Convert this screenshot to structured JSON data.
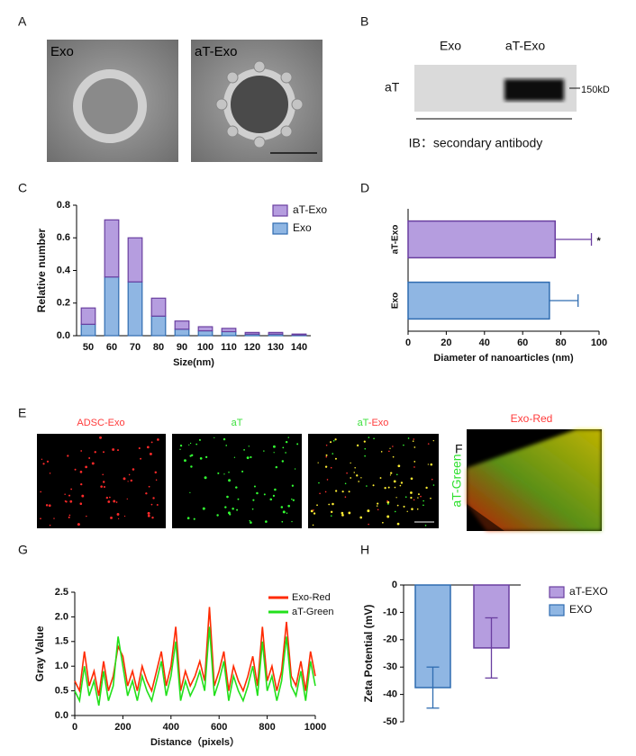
{
  "panel_labels": [
    "A",
    "B",
    "C",
    "D",
    "E",
    "F",
    "G",
    "H"
  ],
  "panel_a": {
    "images": [
      "Exo",
      "aT-Exo"
    ]
  },
  "panel_b": {
    "lanes": [
      "Exo",
      "aT-Exo"
    ],
    "row_label": "aT",
    "marker": "150kD",
    "caption": "IB：secondary antibody"
  },
  "panel_e": {
    "titles": [
      "ADSC-Exo",
      "aT",
      [
        "aT",
        "-Exo"
      ]
    ]
  },
  "panel_f": {
    "x_label": "Exo-Red",
    "y_label": "aT-Green"
  },
  "chart_data": [
    {
      "type": "bar",
      "stacked": true,
      "legend": "upper right",
      "categories": [
        "50",
        "60",
        "70",
        "80",
        "90",
        "100",
        "110",
        "120",
        "130",
        "140"
      ],
      "series": [
        {
          "name": "aT-Exo",
          "color": "#b59ddf",
          "edgecolor": "#6a3fa0",
          "values": [
            0.1,
            0.35,
            0.27,
            0.11,
            0.05,
            0.025,
            0.02,
            0.01,
            0.01,
            0.005
          ]
        },
        {
          "name": "Exo",
          "color": "#8fb6e3",
          "edgecolor": "#2f6cb0",
          "values": [
            0.07,
            0.36,
            0.33,
            0.12,
            0.04,
            0.03,
            0.025,
            0.01,
            0.01,
            0.005
          ]
        }
      ],
      "ylim": [
        0,
        0.8
      ],
      "yticks": [
        {
          "value": 0,
          "label": "0.0"
        },
        0.2,
        0.4,
        0.6,
        0.8
      ],
      "xlabel": "Size(nm)",
      "ylabel": "Relative number"
    },
    {
      "type": "hbar",
      "categories": [
        "aT-Exo",
        "Exo"
      ],
      "values": [
        77,
        74
      ],
      "errors": [
        19,
        15
      ],
      "colors": [
        "#b59ddf",
        "#8fb6e3"
      ],
      "edgecolors": [
        "#6a3fa0",
        "#2f6cb0"
      ],
      "annotations": [
        "*",
        null
      ],
      "xlim": [
        0,
        100
      ],
      "xticks": [
        0,
        20,
        40,
        60,
        80,
        100
      ],
      "xlabel": "Diameter of nanoarticles (nm)"
    },
    {
      "type": "line",
      "legend": "upper right",
      "x": [
        0,
        20,
        40,
        60,
        80,
        100,
        120,
        140,
        160,
        180,
        200,
        220,
        240,
        260,
        280,
        300,
        320,
        340,
        360,
        380,
        400,
        420,
        440,
        460,
        480,
        500,
        520,
        540,
        560,
        580,
        600,
        620,
        640,
        660,
        680,
        700,
        720,
        740,
        760,
        780,
        800,
        820,
        840,
        860,
        880,
        900,
        920,
        940,
        960,
        980,
        1000
      ],
      "series": [
        {
          "name": "Exo-Red",
          "color": "#ff2a00",
          "values": [
            0.7,
            0.5,
            1.3,
            0.6,
            0.9,
            0.4,
            1.1,
            0.5,
            0.8,
            1.4,
            1.2,
            0.6,
            0.9,
            0.5,
            1.0,
            0.7,
            0.5,
            0.9,
            1.3,
            0.6,
            1.0,
            1.8,
            0.5,
            0.9,
            0.6,
            0.8,
            1.1,
            0.7,
            2.2,
            0.6,
            0.9,
            1.3,
            0.5,
            1.0,
            0.7,
            0.5,
            0.8,
            1.2,
            0.6,
            1.8,
            0.7,
            1.0,
            0.5,
            0.9,
            1.9,
            0.8,
            0.6,
            1.1,
            0.5,
            1.3,
            0.8
          ]
        },
        {
          "name": "aT-Green",
          "color": "#22e01b",
          "values": [
            0.5,
            0.3,
            1.0,
            0.4,
            0.7,
            0.2,
            0.9,
            0.3,
            0.6,
            1.6,
            1.0,
            0.4,
            0.7,
            0.3,
            0.8,
            0.5,
            0.3,
            0.7,
            1.1,
            0.4,
            0.8,
            1.5,
            0.3,
            0.7,
            0.4,
            0.6,
            0.9,
            0.5,
            1.8,
            0.4,
            0.7,
            1.1,
            0.3,
            0.8,
            0.5,
            0.3,
            0.6,
            1.0,
            0.4,
            1.5,
            0.5,
            0.8,
            0.3,
            0.7,
            1.6,
            0.6,
            0.4,
            0.9,
            0.3,
            1.1,
            0.6
          ]
        }
      ],
      "xlim": [
        0,
        1000
      ],
      "xticks": [
        0,
        200,
        400,
        600,
        800,
        1000
      ],
      "ylim": [
        0,
        2.5
      ],
      "yticks": [
        {
          "value": 0,
          "label": "0.0"
        },
        0.5,
        {
          "value": 1,
          "label": "1.0"
        },
        1.5,
        {
          "value": 2,
          "label": "2.0"
        },
        2.5
      ],
      "xlabel": "Distance（pixels）",
      "ylabel": "Gray Value"
    },
    {
      "type": "bar",
      "stacked": false,
      "legend": "outside right",
      "categories": [
        null,
        null
      ],
      "series": [
        {
          "name": "aT-EXO",
          "color": "#b59ddf",
          "edgecolor": "#6a3fa0",
          "values": [
            null,
            -23
          ],
          "errors": [
            null,
            11
          ]
        },
        {
          "name": "EXO",
          "color": "#8fb6e3",
          "edgecolor": "#2f6cb0",
          "values": [
            -37.5,
            null
          ],
          "errors": [
            7.5,
            null
          ]
        }
      ],
      "ylim": [
        -50,
        0
      ],
      "yticks": [
        -50,
        -40,
        -30,
        -20,
        -10,
        0
      ],
      "ylabel": "Zeta Potential (mV)"
    }
  ]
}
